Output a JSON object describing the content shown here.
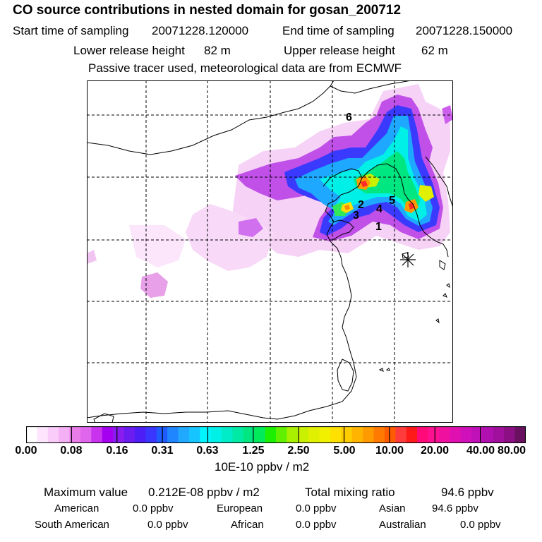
{
  "header": {
    "title": "CO  source contributions in nested domain for gosan_200712",
    "start_label": "Start time of sampling",
    "start_value": "20071228.120000",
    "end_label": "End time of sampling",
    "end_value": "20071228.150000",
    "lower_label": "Lower release height",
    "lower_value": "82 m",
    "upper_label": "Upper release height",
    "upper_value": "62 m",
    "note": "Passive tracer used, meteorological data are from ECMWF"
  },
  "map": {
    "markers": [
      "1",
      "2",
      "3",
      "4",
      "5",
      "6"
    ],
    "receptor_symbol": "receptor-star"
  },
  "colorbar": {
    "tick_labels": [
      "0.00",
      "0.08",
      "0.16",
      "0.31",
      "0.63",
      "1.25",
      "2.50",
      "5.00",
      "10.00",
      "20.00",
      "40.00",
      "80.00"
    ],
    "units": "10E-10 ppbv / m2",
    "colors": [
      "#ffffff",
      "#fde6fd",
      "#f9ccf9",
      "#f4b0f4",
      "#e87de8",
      "#e065ed",
      "#c933ee",
      "#a500f0",
      "#8a1cf0",
      "#6b1cf0",
      "#4d1ef5",
      "#3a35ff",
      "#1e5cff",
      "#1f86ff",
      "#21a8ff",
      "#16c5ff",
      "#00f5ff",
      "#00f0e8",
      "#00ecc8",
      "#00eaa5",
      "#00e680",
      "#00ea5a",
      "#1cf000",
      "#60f000",
      "#a8f000",
      "#c8f000",
      "#e0f000",
      "#f0f000",
      "#ffe000",
      "#ffcc00",
      "#ffb400",
      "#ff9a00",
      "#ff7a00",
      "#ff5c00",
      "#ff3c3c",
      "#ff1a1a",
      "#ff0a78",
      "#ff1090",
      "#f010a0",
      "#e010b0",
      "#d010b8",
      "#c010b8",
      "#b010b0",
      "#a0109c",
      "#8a1084",
      "#6a1060"
    ]
  },
  "stats": {
    "max_label": "Maximum value",
    "max_value": "0.212E-08 ppbv / m2",
    "total_label": "Total mixing ratio",
    "total_value": "94.6 ppbv"
  },
  "regions": {
    "american_label": "American",
    "american_value": "0.0 ppbv",
    "european_label": "European",
    "european_value": "0.0 ppbv",
    "asian_label": "Asian",
    "asian_value": "94.6 ppbv",
    "south_american_label": "South American",
    "south_american_value": "0.0 ppbv",
    "african_label": "African",
    "african_value": "0.0 ppbv",
    "australian_label": "Australian",
    "australian_value": "0.0 ppbv"
  }
}
